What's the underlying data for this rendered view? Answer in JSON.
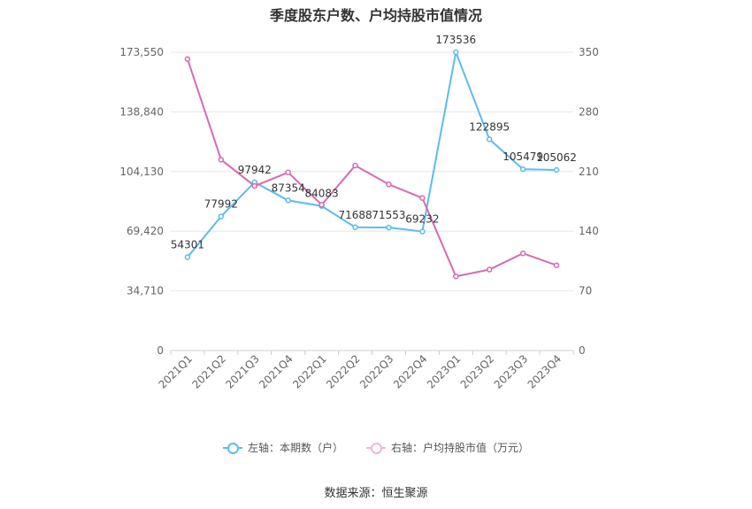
{
  "chart_data": {
    "type": "line",
    "title": "季度股东户数、户均持股市值情况",
    "categories": [
      "2021Q1",
      "2021Q2",
      "2021Q3",
      "2021Q4",
      "2022Q1",
      "2022Q2",
      "2022Q3",
      "2022Q4",
      "2023Q1",
      "2023Q2",
      "2023Q3",
      "2023Q4"
    ],
    "left_axis": {
      "ticks": [
        "0",
        "34,710",
        "69,420",
        "104,130",
        "138,840",
        "173,550"
      ],
      "ylim": [
        0,
        173550
      ]
    },
    "right_axis": {
      "ticks": [
        "0",
        "70",
        "140",
        "210",
        "280",
        "350"
      ],
      "ylim": [
        0,
        350
      ]
    },
    "series": [
      {
        "name": "左轴：本期数（户）",
        "axis": "left",
        "color": "#5bbcf0",
        "values": [
          54301,
          77992,
          97942,
          87354,
          84083,
          71688,
          71553,
          69232,
          173536,
          122895,
          105479,
          105062
        ],
        "labels": [
          "54301",
          "77992",
          "97942",
          "87354",
          "84083",
          "71688",
          "71553",
          "69232",
          "173536",
          "122895",
          "105479",
          "105062"
        ]
      },
      {
        "name": "右轴：户均持股市值（万元）",
        "axis": "right",
        "color": "#d66bb0",
        "values": [
          342,
          224,
          193,
          209,
          171,
          217,
          195,
          179,
          87,
          95,
          114,
          100
        ]
      }
    ],
    "grid": true,
    "legend_position": "bottom"
  },
  "source": "数据来源：恒生聚源"
}
